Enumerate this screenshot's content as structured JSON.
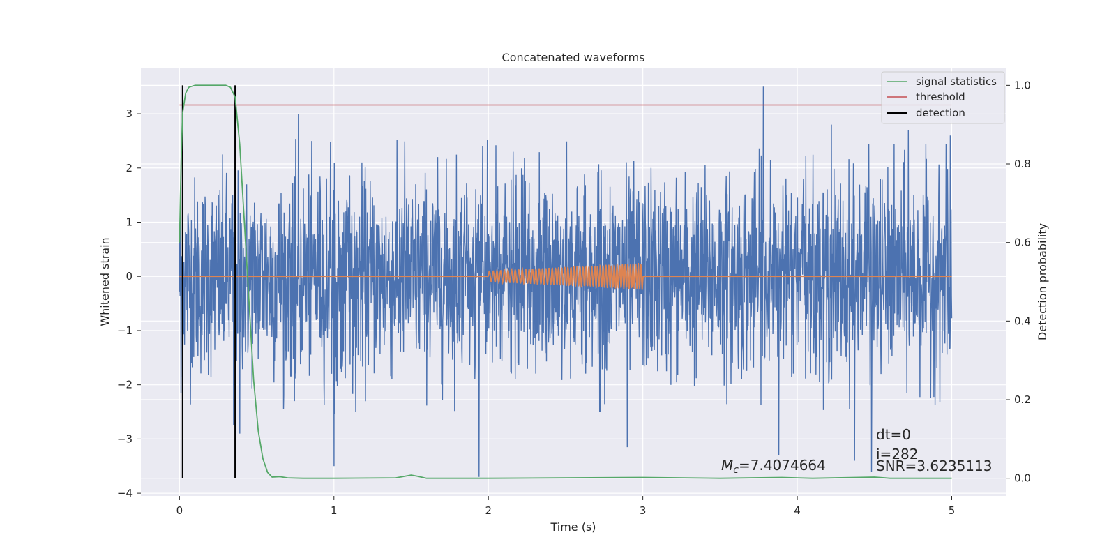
{
  "chart_data": {
    "type": "line",
    "title": "Concatenated waveforms",
    "xlabel": "Time (s)",
    "ylabel": "Whitened strain",
    "y2label": "Detection probability",
    "xlim": [
      -0.25,
      5.35
    ],
    "ylim": [
      -4.05,
      3.85
    ],
    "y2lim": [
      -0.045,
      1.045
    ],
    "x_ticks": [
      0,
      1,
      2,
      3,
      4,
      5
    ],
    "y_ticks": [
      -4,
      -3,
      -2,
      -1,
      0,
      1,
      2,
      3
    ],
    "y2_ticks": [
      0.0,
      0.2,
      0.4,
      0.6,
      0.8,
      1.0
    ],
    "x_tick_labels": [
      "0",
      "1",
      "2",
      "3",
      "4",
      "5"
    ],
    "y_tick_labels": [
      "−4",
      "−3",
      "−2",
      "−1",
      "0",
      "1",
      "2",
      "3"
    ],
    "y2_tick_labels": [
      "0.0",
      "0.2",
      "0.4",
      "0.6",
      "0.8",
      "1.0"
    ],
    "grid": true,
    "legend_position": "top-right",
    "noise": {
      "color": "#4c72b0",
      "x_range": [
        0,
        5
      ],
      "peaks": [
        {
          "x": 0.01,
          "y": 2.6
        },
        {
          "x": 0.36,
          "y": 2.6
        },
        {
          "x": 0.77,
          "y": 3.0
        },
        {
          "x": 3.78,
          "y": 3.5
        },
        {
          "x": 4.22,
          "y": 2.8
        },
        {
          "x": 4.48,
          "y": 2.95
        },
        {
          "x": 4.72,
          "y": 2.7
        },
        {
          "x": 4.99,
          "y": 2.6
        },
        {
          "x": 0.01,
          "y": -2.15
        },
        {
          "x": 0.35,
          "y": -2.75
        },
        {
          "x": 0.39,
          "y": -2.9
        },
        {
          "x": 1.0,
          "y": -3.5
        },
        {
          "x": 1.94,
          "y": -3.7
        },
        {
          "x": 2.9,
          "y": -3.15
        },
        {
          "x": 3.88,
          "y": -3.3
        },
        {
          "x": 4.37,
          "y": -3.4
        },
        {
          "x": 4.48,
          "y": -3.6
        },
        {
          "x": 4.09,
          "y": -0.95
        }
      ]
    },
    "chirp": {
      "color": "#dd8452",
      "x_range": [
        0,
        5
      ],
      "burst_start": 2.0,
      "burst_end": 3.0,
      "amp_start": 0.1,
      "amp_end": 0.25,
      "cycles": 40
    },
    "series": [
      {
        "name": "signal statistics",
        "color": "#55a868",
        "axis": "right",
        "x": [
          0,
          0.01,
          0.02,
          0.04,
          0.06,
          0.1,
          0.2,
          0.3,
          0.33,
          0.36,
          0.39,
          0.42,
          0.45,
          0.48,
          0.51,
          0.54,
          0.57,
          0.6,
          0.65,
          0.7,
          0.8,
          1.0,
          1.4,
          1.46,
          1.5,
          1.54,
          1.6,
          2.0,
          3.0,
          3.5,
          3.9,
          4.1,
          4.5,
          4.6,
          5.0
        ],
        "y": [
          0.6,
          0.8,
          0.93,
          0.98,
          0.995,
          1.0,
          1.0,
          1.0,
          0.995,
          0.97,
          0.85,
          0.65,
          0.45,
          0.25,
          0.12,
          0.05,
          0.015,
          0.003,
          0.004,
          0.001,
          0.0,
          0.0,
          0.001,
          0.005,
          0.008,
          0.005,
          0.0,
          0.0,
          0.002,
          0.0,
          0.002,
          0.0,
          0.003,
          0.0,
          0.0
        ]
      },
      {
        "name": "threshold",
        "color": "#c44e52",
        "axis": "right",
        "x": [
          0,
          5
        ],
        "y": [
          0.95,
          0.95
        ]
      },
      {
        "name": "detection",
        "color": "#000000",
        "axis": "right",
        "x": [
          0.02,
          0.36
        ],
        "y": [
          1.0,
          1.0
        ]
      }
    ],
    "annotations": {
      "mc": "M",
      "mc_sub": "c",
      "mc_value": "=7.4074664",
      "dt": "dt=0",
      "i": "i=282",
      "snr": "SNR=3.6235113"
    }
  }
}
